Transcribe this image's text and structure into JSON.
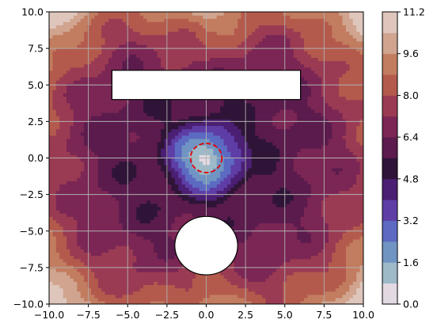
{
  "chart_data": {
    "type": "heatmap",
    "title": "",
    "xlabel": "",
    "ylabel": "",
    "xlim": [
      -10,
      10
    ],
    "ylim": [
      -10,
      10
    ],
    "grid": true,
    "x_ticks": [
      "−10.0",
      "−7.5",
      "−5.0",
      "−2.5",
      "0.0",
      "2.5",
      "5.0",
      "7.5",
      "10.0"
    ],
    "x_tick_values": [
      -10,
      -7.5,
      -5,
      -2.5,
      0,
      2.5,
      5,
      7.5,
      10
    ],
    "y_ticks": [
      "10.0",
      "7.5",
      "5.0",
      "2.5",
      "0.0",
      "−2.5",
      "−5.0",
      "−7.5",
      "−10.0"
    ],
    "y_tick_values": [
      10,
      7.5,
      5,
      2.5,
      0,
      -2.5,
      -5,
      -7.5,
      -10
    ],
    "colorbar": {
      "range": [
        0,
        11.2
      ],
      "ticks": [
        "0.0",
        "1.6",
        "3.2",
        "4.8",
        "6.4",
        "8.0",
        "9.6",
        "11.2"
      ],
      "tick_values": [
        0,
        1.6,
        3.2,
        4.8,
        6.4,
        8.0,
        9.6,
        11.2
      ],
      "levels": [
        0,
        0.8,
        1.6,
        2.4,
        3.2,
        4.0,
        4.8,
        5.6,
        6.4,
        7.2,
        8.0,
        8.8,
        9.6,
        10.4,
        11.2
      ],
      "colors": [
        "#e2d9e2",
        "#9ebac8",
        "#7195c3",
        "#5d6ac1",
        "#5e3ea6",
        "#4b1f73",
        "#2f1437",
        "#5b1b4d",
        "#7b2654",
        "#9b3b53",
        "#b45a4d",
        "#c27c5f",
        "#d0a48f",
        "#dfc6bc"
      ]
    },
    "obstacles": {
      "rectangle": {
        "x_min": -6,
        "x_max": 6,
        "y_min": 4,
        "y_max": 6
      },
      "circle": {
        "cx": 0,
        "cy": -6,
        "r": 2
      }
    },
    "dashed_circle": {
      "cx": 0,
      "cy": 0,
      "r": 1,
      "color": "#e00000"
    }
  }
}
